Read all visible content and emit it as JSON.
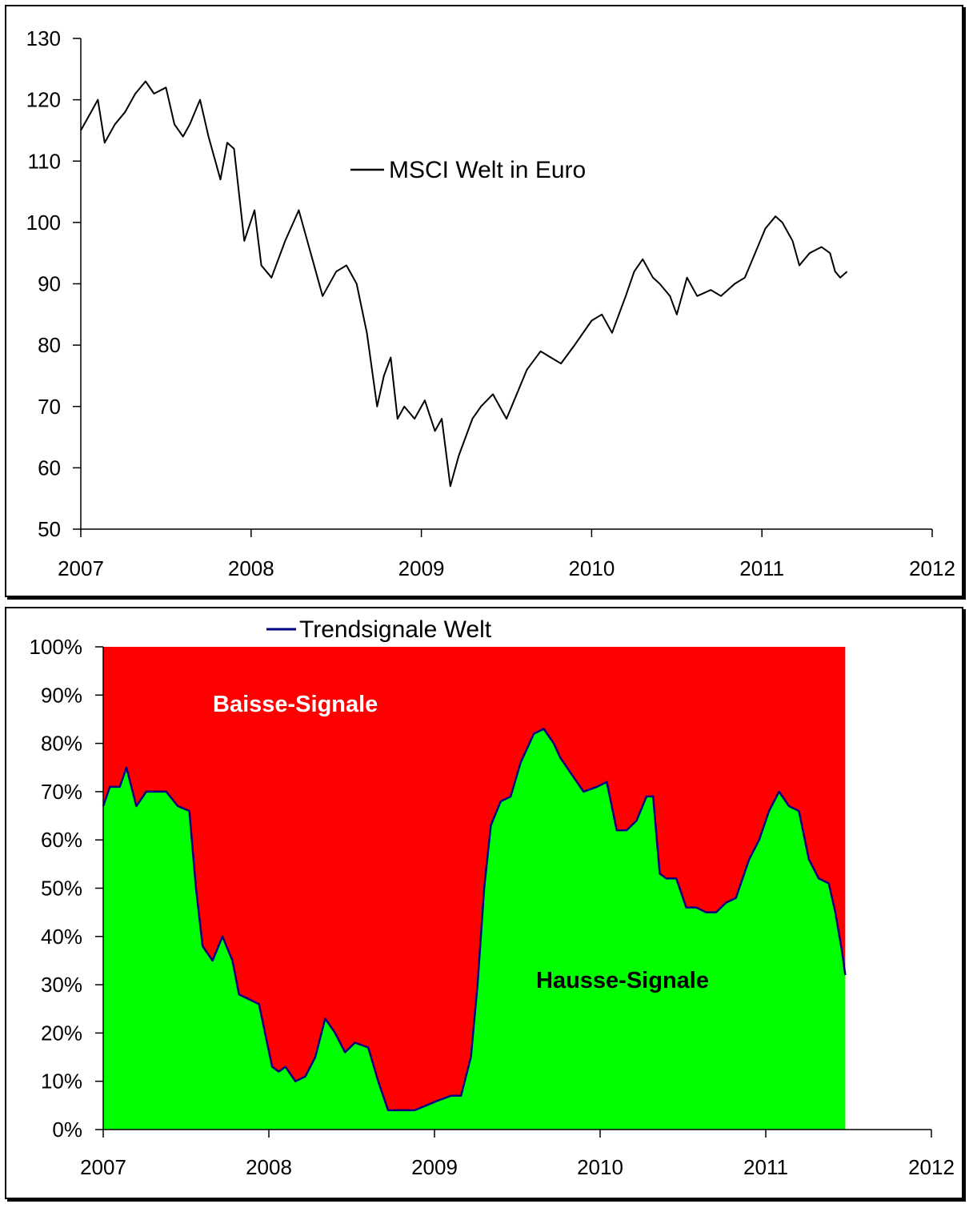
{
  "colors": {
    "price_line": "#000000",
    "signal_line": "#000080",
    "bear_area": "#ff0000",
    "bull_area": "#00ff00",
    "bear_label": "#ffffff",
    "bull_label": "#000000"
  },
  "chart_data": [
    {
      "type": "line",
      "title": "",
      "xlabel": "",
      "ylabel": "",
      "xlim": [
        2007,
        2012
      ],
      "ylim": [
        50,
        130
      ],
      "x_ticks": [
        "2007",
        "2008",
        "2009",
        "2010",
        "2011",
        "2012"
      ],
      "y_ticks": [
        "50",
        "60",
        "70",
        "80",
        "90",
        "100",
        "110",
        "120",
        "130"
      ],
      "legend": "upper-center",
      "grid": false,
      "series": [
        {
          "name": "MSCI Welt in Euro",
          "x": [
            2007.0,
            2007.06,
            2007.1,
            2007.14,
            2007.2,
            2007.26,
            2007.32,
            2007.38,
            2007.43,
            2007.5,
            2007.55,
            2007.6,
            2007.64,
            2007.7,
            2007.75,
            2007.82,
            2007.86,
            2007.9,
            2007.96,
            2008.02,
            2008.06,
            2008.12,
            2008.2,
            2008.28,
            2008.35,
            2008.42,
            2008.5,
            2008.56,
            2008.62,
            2008.68,
            2008.74,
            2008.78,
            2008.82,
            2008.86,
            2008.9,
            2008.96,
            2009.02,
            2009.08,
            2009.12,
            2009.17,
            2009.22,
            2009.3,
            2009.35,
            2009.42,
            2009.5,
            2009.56,
            2009.62,
            2009.7,
            2009.76,
            2009.82,
            2009.9,
            2010.0,
            2010.06,
            2010.12,
            2010.2,
            2010.25,
            2010.3,
            2010.36,
            2010.4,
            2010.46,
            2010.5,
            2010.56,
            2010.62,
            2010.7,
            2010.76,
            2010.84,
            2010.9,
            2010.96,
            2011.02,
            2011.08,
            2011.12,
            2011.18,
            2011.22,
            2011.28,
            2011.35,
            2011.4,
            2011.43,
            2011.46,
            2011.5
          ],
          "y": [
            115,
            118,
            120,
            113,
            116,
            118,
            121,
            123,
            121,
            122,
            116,
            114,
            116,
            120,
            114,
            107,
            113,
            112,
            97,
            102,
            93,
            91,
            97,
            102,
            95,
            88,
            92,
            93,
            90,
            82,
            70,
            75,
            78,
            68,
            70,
            68,
            71,
            66,
            68,
            57,
            62,
            68,
            70,
            72,
            68,
            72,
            76,
            79,
            78,
            77,
            80,
            84,
            85,
            82,
            88,
            92,
            94,
            91,
            90,
            88,
            85,
            91,
            88,
            89,
            88,
            90,
            91,
            95,
            99,
            101,
            100,
            97,
            93,
            95,
            96,
            95,
            92,
            91,
            92
          ]
        }
      ]
    },
    {
      "type": "area",
      "title": "",
      "xlabel": "",
      "ylabel": "",
      "xlim": [
        2007,
        2012
      ],
      "ylim": [
        0,
        100
      ],
      "x_ticks": [
        "2007",
        "2008",
        "2009",
        "2010",
        "2011",
        "2012"
      ],
      "y_ticks": [
        "0%",
        "10%",
        "20%",
        "30%",
        "40%",
        "50%",
        "60%",
        "70%",
        "80%",
        "90%",
        "100%"
      ],
      "legend": "top-left",
      "grid": false,
      "annotations": [
        "Baisse-Signale",
        "Hausse-Signale"
      ],
      "series": [
        {
          "name": "Trendsignale Welt",
          "x": [
            2007.0,
            2007.04,
            2007.1,
            2007.14,
            2007.2,
            2007.26,
            2007.32,
            2007.38,
            2007.45,
            2007.52,
            2007.56,
            2007.6,
            2007.62,
            2007.66,
            2007.72,
            2007.78,
            2007.82,
            2007.88,
            2007.94,
            2008.02,
            2008.06,
            2008.1,
            2008.16,
            2008.22,
            2008.28,
            2008.34,
            2008.4,
            2008.46,
            2008.52,
            2008.6,
            2008.66,
            2008.72,
            2008.76,
            2008.82,
            2008.88,
            2008.95,
            2009.02,
            2009.1,
            2009.16,
            2009.22,
            2009.26,
            2009.3,
            2009.34,
            2009.4,
            2009.46,
            2009.52,
            2009.6,
            2009.66,
            2009.72,
            2009.76,
            2009.82,
            2009.9,
            2009.98,
            2010.04,
            2010.1,
            2010.16,
            2010.22,
            2010.28,
            2010.32,
            2010.36,
            2010.4,
            2010.46,
            2010.52,
            2010.58,
            2010.64,
            2010.7,
            2010.76,
            2010.82,
            2010.9,
            2010.96,
            2011.02,
            2011.08,
            2011.14,
            2011.2,
            2011.26,
            2011.32,
            2011.38,
            2011.42,
            2011.46,
            2011.48
          ],
          "y": [
            67,
            71,
            71,
            75,
            67,
            70,
            70,
            70,
            67,
            66,
            50,
            38,
            37,
            35,
            40,
            35,
            28,
            27,
            26,
            13,
            12,
            13,
            10,
            11,
            15,
            23,
            20,
            16,
            18,
            17,
            10,
            4,
            4,
            4,
            4,
            5,
            6,
            7,
            7,
            15,
            30,
            50,
            63,
            68,
            69,
            76,
            82,
            83,
            80,
            77,
            74,
            70,
            71,
            72,
            62,
            62,
            64,
            69,
            69,
            53,
            52,
            52,
            46,
            46,
            45,
            45,
            47,
            48,
            56,
            60,
            66,
            70,
            67,
            66,
            56,
            52,
            51,
            45,
            37,
            32
          ]
        }
      ]
    }
  ]
}
